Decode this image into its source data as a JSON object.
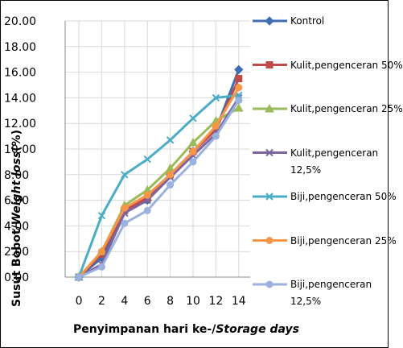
{
  "chart_data": {
    "type": "line",
    "y_label": [
      "Susut Bobot/",
      "Weight loss",
      "(%)"
    ],
    "x_label": [
      "Penyimpanan hari ke-/",
      "Storage days"
    ],
    "x": [
      0,
      2,
      4,
      6,
      8,
      10,
      12,
      14
    ],
    "xlim": [
      -1.2,
      15
    ],
    "xticks": [
      0,
      2,
      4,
      6,
      8,
      10,
      12,
      14
    ],
    "ylim": [
      0,
      20
    ],
    "yticks": [
      {
        "value": 0,
        "label": "0.00"
      },
      {
        "value": 2,
        "label": "2.00"
      },
      {
        "value": 4,
        "label": "4.00"
      },
      {
        "value": 6,
        "label": "6.00"
      },
      {
        "value": 8,
        "label": "8.00"
      },
      {
        "value": 10,
        "label": "10.00"
      },
      {
        "value": 12,
        "label": "12.00"
      },
      {
        "value": 14,
        "label": "14.00"
      },
      {
        "value": 16,
        "label": "16.00"
      },
      {
        "value": 18,
        "label": "18.00"
      },
      {
        "value": 20,
        "label": "20.00"
      }
    ],
    "grid": true,
    "legend": "right",
    "series": [
      {
        "name": "Kontrol",
        "color": "#3e6db3",
        "marker": "diamond",
        "values": [
          0,
          1.5,
          5.2,
          6.0,
          8.0,
          9.8,
          11.5,
          16.2
        ]
      },
      {
        "name": "Kulit,pengenceran 50%",
        "color": "#be4b48",
        "marker": "square",
        "values": [
          0,
          1.8,
          5.2,
          6.2,
          8.0,
          9.8,
          11.5,
          15.5
        ]
      },
      {
        "name": "Kulit,pengenceran 25%",
        "color": "#9bbb59",
        "marker": "triangle",
        "values": [
          0,
          2.0,
          5.6,
          6.8,
          8.5,
          10.5,
          12.2,
          13.2
        ]
      },
      {
        "name": "Kulit,pengenceran 12,5%",
        "color": "#7f63a1",
        "marker": "cross",
        "values": [
          0,
          1.0,
          5.0,
          6.0,
          7.8,
          9.5,
          11.2,
          14.0
        ]
      },
      {
        "name": "Biji,pengenceran 50%",
        "color": "#4aacc5",
        "marker": "cross",
        "values": [
          0,
          4.8,
          8.0,
          9.2,
          10.7,
          12.4,
          14.0,
          14.2
        ]
      },
      {
        "name": "Biji,pengenceran 25%",
        "color": "#f79646",
        "marker": "circle",
        "values": [
          0,
          2.0,
          5.4,
          6.4,
          8.0,
          9.8,
          11.8,
          14.8
        ]
      },
      {
        "name": "Biji,pengenceran 12,5%",
        "color": "#9bb1de",
        "marker": "circle",
        "values": [
          0,
          0.8,
          4.2,
          5.2,
          7.2,
          9.0,
          11.0,
          13.8
        ]
      }
    ]
  }
}
